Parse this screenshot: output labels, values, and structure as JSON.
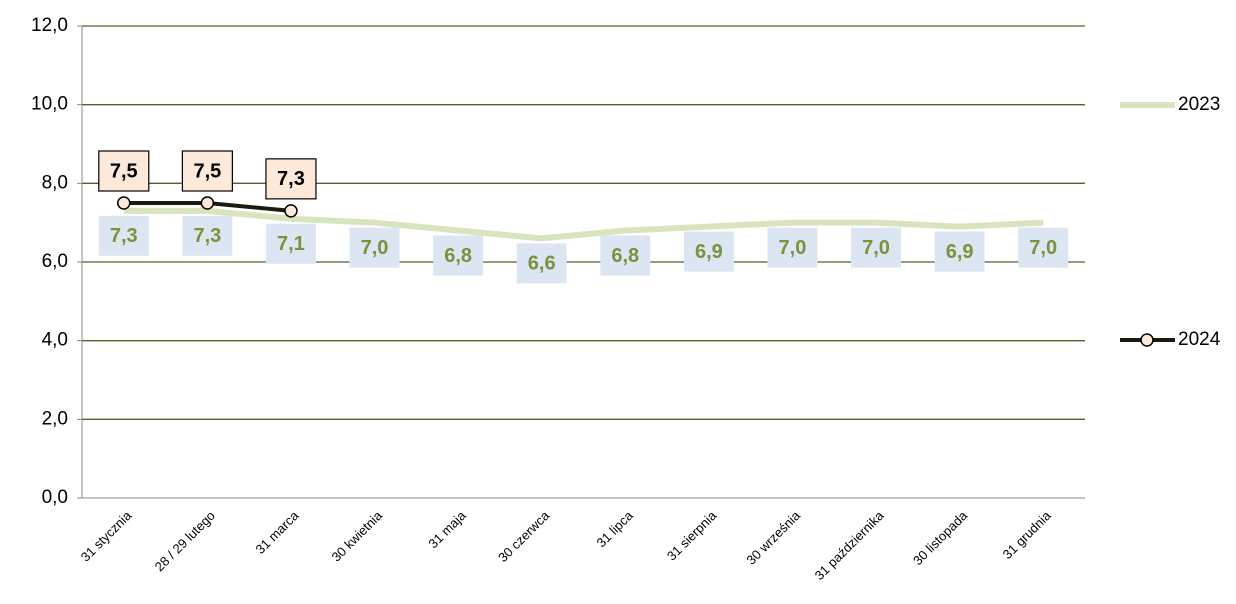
{
  "chart_data": {
    "type": "line",
    "categories": [
      "31 stycznia",
      "28 / 29 lutego",
      "31 marca",
      "30 kwietnia",
      "31 maja",
      "30 czerwca",
      "31 lipca",
      "31 sierpnia",
      "30 września",
      "31 października",
      "30 listopada",
      "31 grudnia"
    ],
    "series": [
      {
        "name": "2023",
        "color": "#d7e4bd",
        "values": [
          7.3,
          7.3,
          7.1,
          7.0,
          6.8,
          6.6,
          6.8,
          6.9,
          7.0,
          7.0,
          6.9,
          7.0
        ],
        "value_labels": [
          "7,3",
          "7,3",
          "7,1",
          "7,0",
          "6,8",
          "6,6",
          "6,8",
          "6,9",
          "7,0",
          "7,0",
          "6,9",
          "7,0"
        ]
      },
      {
        "name": "2024",
        "color": "#1a1a10",
        "values": [
          7.5,
          7.5,
          7.3,
          null,
          null,
          null,
          null,
          null,
          null,
          null,
          null,
          null
        ],
        "value_labels": [
          "7,5",
          "7,5",
          "7,3",
          null,
          null,
          null,
          null,
          null,
          null,
          null,
          null,
          null
        ]
      }
    ],
    "ylim": [
      0,
      12
    ],
    "yticks": [
      {
        "value": 0,
        "label": "0,0"
      },
      {
        "value": 2,
        "label": "2,0"
      },
      {
        "value": 4,
        "label": "4,0"
      },
      {
        "value": 6,
        "label": "6,0"
      },
      {
        "value": 8,
        "label": "8,0"
      },
      {
        "value": 10,
        "label": "10,0"
      },
      {
        "value": 12,
        "label": "12,0"
      }
    ],
    "grid": true
  }
}
